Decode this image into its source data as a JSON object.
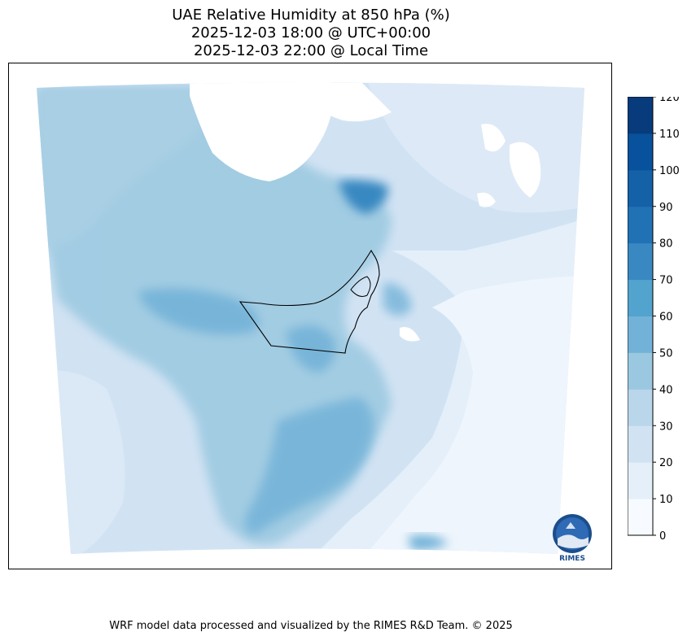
{
  "title": {
    "line1": "UAE Relative Humidity at 850 hPa (%)",
    "line2": "2025-12-03 18:00 @ UTC+00:00",
    "line3": "2025-12-03 22:00 @ Local Time"
  },
  "colorbar": {
    "ticks": [
      "0",
      "10",
      "20",
      "30",
      "40",
      "50",
      "60",
      "70",
      "80",
      "90",
      "100",
      "110",
      "120"
    ],
    "colors": [
      "#f7fbff",
      "#e4eff9",
      "#d1e3f3",
      "#bad6eb",
      "#9ac8e0",
      "#73b2d8",
      "#52a3cd",
      "#3988c1",
      "#2171b5",
      "#1461a8",
      "#08519c",
      "#083b7b"
    ]
  },
  "logo": {
    "text": "RIMES"
  },
  "footer": {
    "text": "WRF model data processed and visualized by the RIMES R&D Team. © 2025"
  }
}
